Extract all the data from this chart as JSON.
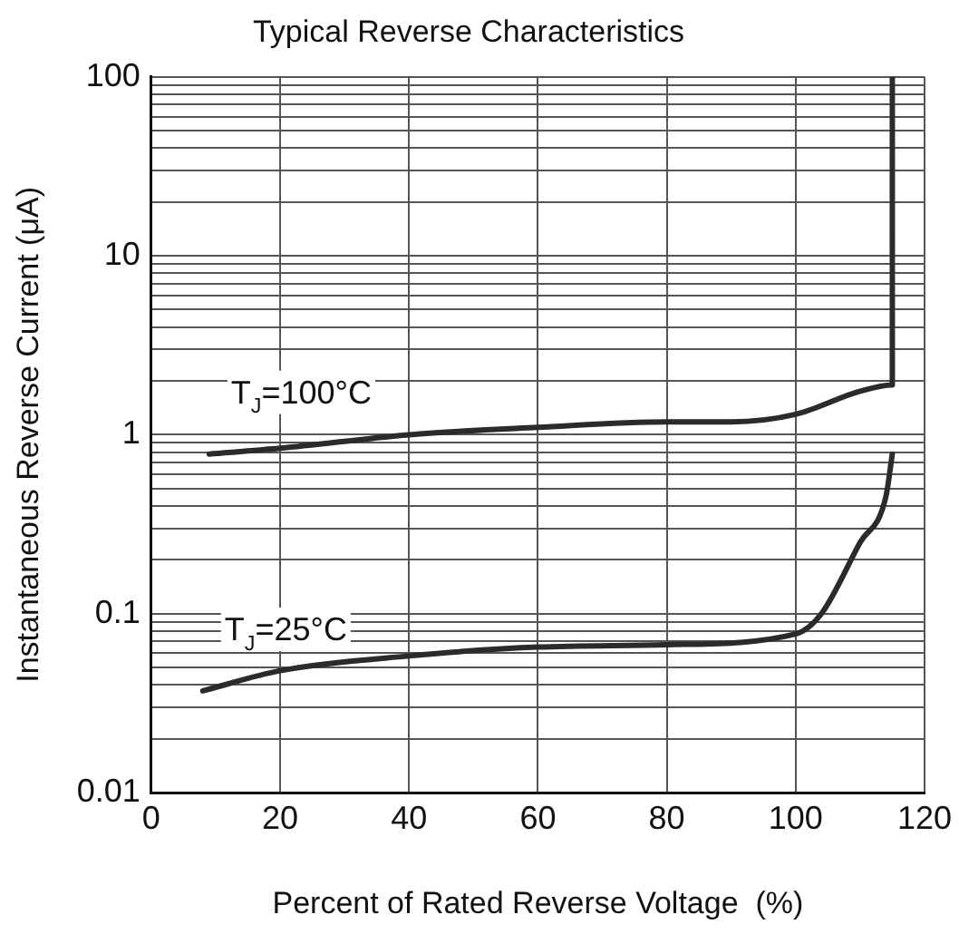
{
  "chart_data": {
    "type": "line",
    "title": "Typical Reverse Characteristics",
    "xlabel": "Percent of Rated Reverse Voltage  (%)",
    "ylabel": "Instantaneous Reverse Current (μA)",
    "series": [
      {
        "name": "T$_{J}$=100°C",
        "color": "#2b2b2b",
        "x": [
          9,
          20,
          40,
          60,
          80,
          90,
          100,
          110,
          115,
          115
        ],
        "values": [
          0.78,
          0.84,
          1.0,
          1.1,
          1.18,
          1.18,
          1.3,
          1.75,
          1.9,
          100
        ]
      },
      {
        "name": "T$_{J}$=25°C",
        "color": "#2b2b2b",
        "x": [
          8,
          20,
          40,
          60,
          80,
          100,
          104,
          110,
          114,
          115
        ],
        "values": [
          0.037,
          0.048,
          0.058,
          0.065,
          0.067,
          0.077,
          0.1,
          0.25,
          0.45,
          0.78
        ]
      }
    ],
    "xlim": [
      0,
      120
    ],
    "xticks": [
      0,
      20,
      40,
      60,
      80,
      100,
      120
    ],
    "ylim": [
      0.01,
      100
    ],
    "log": "y",
    "yticks": [
      0.01,
      {
        "value": 0.02,
        "label": null
      },
      {
        "value": 0.03,
        "label": null
      },
      {
        "value": 0.04,
        "label": null
      },
      {
        "value": 0.05,
        "label": null
      },
      {
        "value": 0.06,
        "label": null
      },
      {
        "value": 0.07,
        "label": null
      },
      {
        "value": 0.08,
        "label": null
      },
      {
        "value": 0.09,
        "label": null
      },
      0.1,
      {
        "value": 0.2,
        "label": null
      },
      {
        "value": 0.3,
        "label": null
      },
      {
        "value": 0.4,
        "label": null
      },
      {
        "value": 0.5,
        "label": null
      },
      {
        "value": 0.6,
        "label": null
      },
      {
        "value": 0.7,
        "label": null
      },
      {
        "value": 0.8,
        "label": null
      },
      {
        "value": 0.9,
        "label": null
      },
      1,
      {
        "value": 2,
        "label": null
      },
      {
        "value": 3,
        "label": null
      },
      {
        "value": 4,
        "label": null
      },
      {
        "value": 5,
        "label": null
      },
      {
        "value": 6,
        "label": null
      },
      {
        "value": 7,
        "label": null
      },
      {
        "value": 8,
        "label": null
      },
      {
        "value": 9,
        "label": null
      },
      10,
      {
        "value": 20,
        "label": null
      },
      {
        "value": 30,
        "label": null
      },
      {
        "value": 40,
        "label": null
      },
      {
        "value": 50,
        "label": null
      },
      {
        "value": 60,
        "label": null
      },
      {
        "value": 70,
        "label": null
      },
      {
        "value": 80,
        "label": null
      },
      {
        "value": 90,
        "label": null
      },
      100
    ],
    "grid": true,
    "legend": false,
    "marker": "none",
    "line_style": "solid"
  }
}
